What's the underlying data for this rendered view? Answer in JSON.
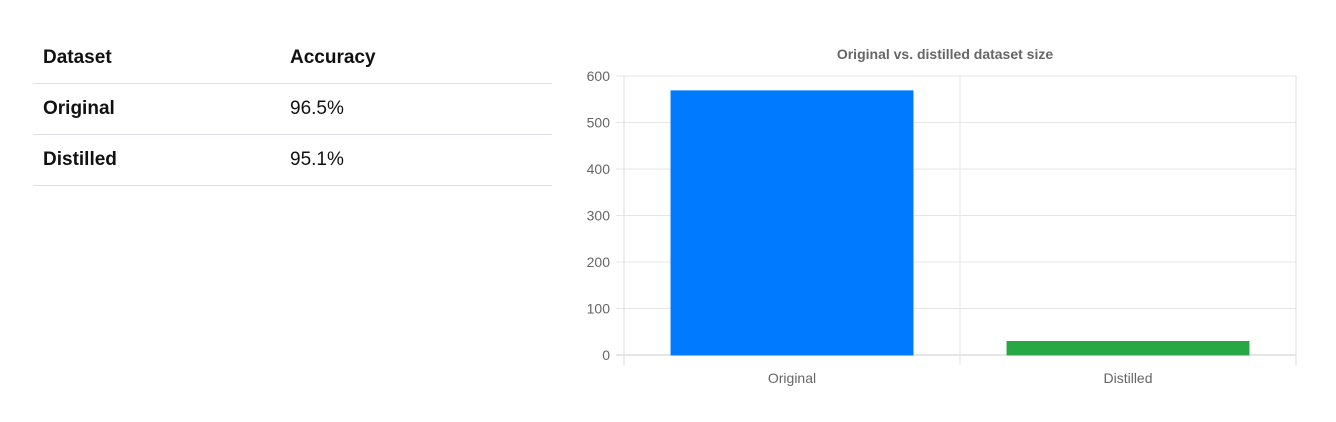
{
  "table": {
    "headers": [
      "Dataset",
      "Accuracy"
    ],
    "rows": [
      {
        "dataset": "Original",
        "accuracy": "96.5%"
      },
      {
        "dataset": "Distilled",
        "accuracy": "95.1%"
      }
    ]
  },
  "chart_data": {
    "type": "bar",
    "title": "Original vs. distilled dataset size",
    "categories": [
      "Original",
      "Distilled"
    ],
    "values": [
      568,
      29
    ],
    "colors": [
      "#007bff",
      "#28a745"
    ],
    "ylim": [
      0,
      600
    ],
    "yticks": [
      0,
      100,
      200,
      300,
      400,
      500,
      600
    ],
    "grid": true,
    "legend": "none"
  }
}
